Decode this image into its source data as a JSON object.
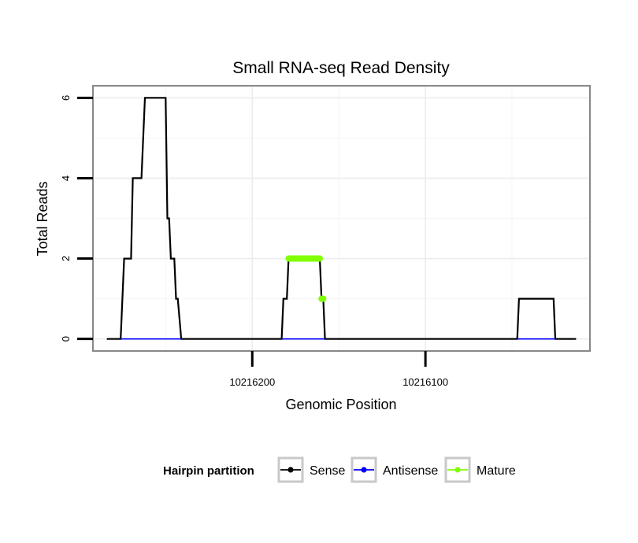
{
  "chart_data": {
    "type": "line",
    "title": "Small RNA-seq Read Density",
    "xlabel": "Genomic Position",
    "ylabel": "Total Reads",
    "x_reversed": true,
    "xlim": [
      10216292,
      10216005
    ],
    "ylim": [
      -0.3,
      6.3
    ],
    "x_ticks": [
      10216200,
      10216100
    ],
    "x_tick_labels": [
      "10216200",
      "10216100"
    ],
    "y_ticks": [
      0,
      2,
      4,
      6
    ],
    "y_tick_labels": [
      "0",
      "2",
      "4",
      "6"
    ],
    "grid": true,
    "series": [
      {
        "name": "Sense",
        "color": "#000000",
        "points": [
          [
            10216284,
            0
          ],
          [
            10216276,
            0
          ],
          [
            10216274,
            2
          ],
          [
            10216270,
            2
          ],
          [
            10216269,
            4
          ],
          [
            10216264,
            4
          ],
          [
            10216262,
            6
          ],
          [
            10216250,
            6
          ],
          [
            10216249,
            3
          ],
          [
            10216248,
            3
          ],
          [
            10216247,
            2
          ],
          [
            10216245,
            2
          ],
          [
            10216244,
            1
          ],
          [
            10216243,
            1
          ],
          [
            10216241,
            0
          ],
          [
            10216183,
            0
          ],
          [
            10216182,
            1
          ],
          [
            10216180,
            1
          ],
          [
            10216179,
            2
          ],
          [
            10216161,
            2
          ],
          [
            10216160,
            1
          ],
          [
            10216159,
            1
          ],
          [
            10216158,
            0
          ],
          [
            10216047,
            0
          ],
          [
            10216046,
            1
          ],
          [
            10216026,
            1
          ],
          [
            10216025,
            0
          ],
          [
            10216013,
            0
          ]
        ]
      },
      {
        "name": "Antisense",
        "color": "#0000ff",
        "points": [
          [
            10216276,
            0
          ],
          [
            10216241,
            0
          ],
          [
            10216183,
            0
          ],
          [
            10216158,
            0
          ],
          [
            10216047,
            0
          ],
          [
            10216025,
            0
          ]
        ]
      },
      {
        "name": "Mature",
        "color": "#7fff00",
        "segments": [
          [
            [
              10216179,
              2
            ],
            [
              10216161,
              2
            ]
          ],
          [
            [
              10216160,
              1
            ],
            [
              10216159,
              1
            ]
          ]
        ]
      }
    ],
    "legend": {
      "title": "Hairpin partition",
      "position": "bottom",
      "entries": [
        {
          "label": "Sense",
          "color": "#000000"
        },
        {
          "label": "Antisense",
          "color": "#0000ff"
        },
        {
          "label": "Mature",
          "color": "#7fff00"
        }
      ]
    }
  }
}
